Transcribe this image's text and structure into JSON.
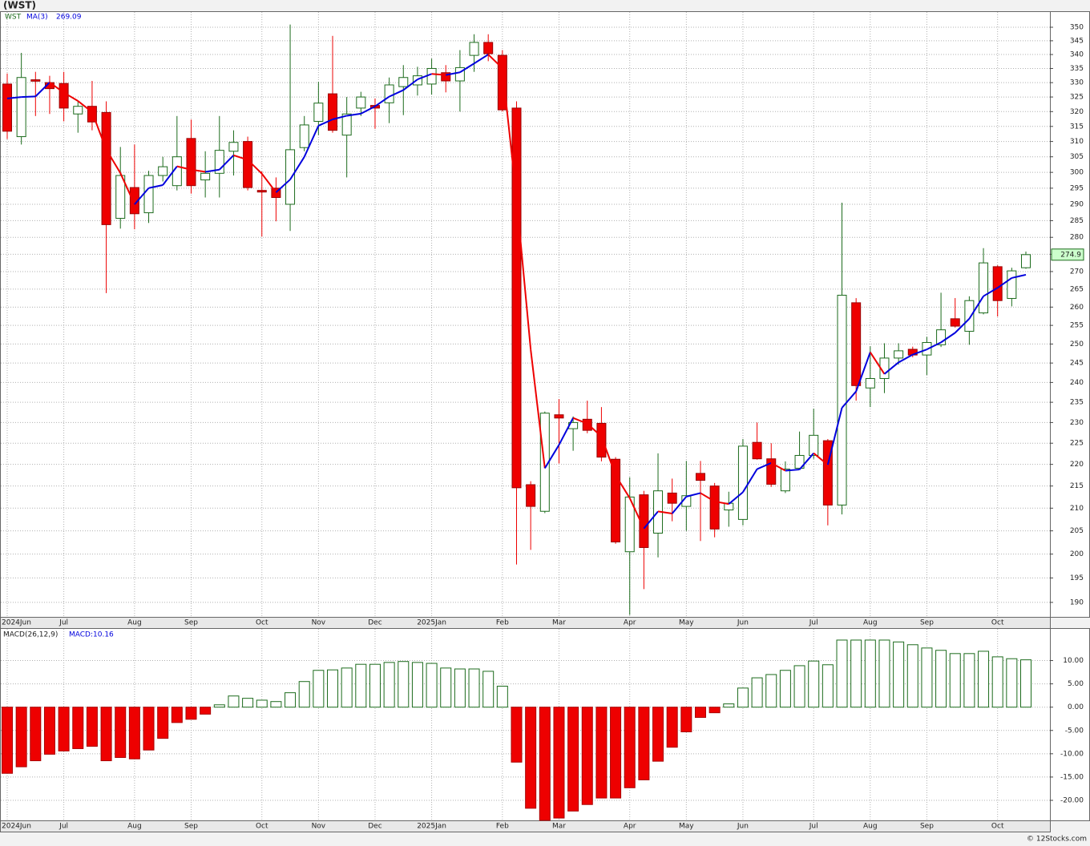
{
  "title": "(WST)",
  "watermark": "© 12Stocks.com",
  "chart_data": [
    {
      "type": "candlestick",
      "categories": [
        "2024Jun",
        null,
        null,
        null,
        "Jul",
        null,
        null,
        null,
        null,
        "Aug",
        null,
        null,
        null,
        "Sep",
        null,
        null,
        null,
        null,
        "Oct",
        null,
        null,
        null,
        "Nov",
        null,
        null,
        null,
        "Dec",
        null,
        null,
        null,
        "2025Jan",
        null,
        null,
        null,
        null,
        "Feb",
        null,
        null,
        null,
        "Mar",
        null,
        null,
        null,
        null,
        "Apr",
        null,
        null,
        null,
        "May",
        null,
        null,
        null,
        "Jun",
        null,
        null,
        null,
        null,
        "Jul",
        null,
        null,
        null,
        "Aug",
        null,
        null,
        null,
        "Sep",
        null,
        null,
        null,
        null,
        "Oct",
        null,
        null
      ],
      "series": [
        {
          "name": "WST",
          "up_color": "#1c6b1c",
          "down_color": "#ee0000",
          "open": [
            329.5,
            311.6,
            331,
            330,
            329.7,
            319.2,
            321.8,
            319.7,
            285.7,
            295.2,
            287.4,
            299,
            295.8,
            311,
            297.6,
            299.7,
            306.8,
            310,
            294.3,
            295,
            290,
            308,
            316.7,
            326.1,
            312.1,
            321.2,
            322.1,
            323,
            328.6,
            329.2,
            329.5,
            333.5,
            330.6,
            339.7,
            344.4,
            339.7,
            321.2,
            215.3,
            209.3,
            231.9,
            228.5,
            230.8,
            229.8,
            221.2,
            200.5,
            213,
            204.5,
            213.4,
            210.4,
            217.9,
            215,
            209.6,
            207.5,
            225.2,
            221.3,
            213.9,
            219.1,
            222.1,
            225.6,
            210.7,
            261.2,
            238.6,
            241,
            246.3,
            248.6,
            247.1,
            249.8,
            256.8,
            253.4,
            258.4,
            271.4,
            262.4,
            271.1
          ],
          "high": [
            333.2,
            340.6,
            333.8,
            332.4,
            333.8,
            323.5,
            330.6,
            323.5,
            308.2,
            309,
            300.5,
            305,
            318.5,
            317.3,
            306.8,
            318.5,
            313.7,
            311.6,
            300.3,
            298.4,
            351,
            318.5,
            330.3,
            346.8,
            325,
            326.8,
            324.5,
            331.8,
            336.2,
            335.6,
            338.5,
            336.2,
            341.6,
            347.4,
            347.4,
            341.6,
            323.5,
            216.1,
            232.7,
            235.8,
            231.5,
            235.4,
            233.8,
            221.7,
            217,
            213.9,
            222.6,
            216.7,
            220.8,
            220.8,
            215.7,
            213.7,
            226,
            230,
            225,
            220.7,
            227.8,
            233.4,
            226,
            290.5,
            262.5,
            249.4,
            250.2,
            250.2,
            249.3,
            251.9,
            264,
            262.5,
            263,
            276.8,
            271.8,
            271.1,
            275.8
          ],
          "low": [
            310.8,
            309,
            318.5,
            319.2,
            316.7,
            312.9,
            313.7,
            263.9,
            282.6,
            282.4,
            284.3,
            297.1,
            294.3,
            293.3,
            292.1,
            292.1,
            299,
            294.3,
            280.2,
            284.8,
            281.9,
            306.8,
            312.1,
            312.9,
            298.4,
            318.5,
            314.2,
            316.1,
            318.8,
            325.5,
            325.8,
            326.6,
            320,
            333.8,
            337.6,
            320,
            197.8,
            200.9,
            208.9,
            220.2,
            223.2,
            227.4,
            220.7,
            202.2,
            187.5,
            192.7,
            199.3,
            207.1,
            205,
            202.8,
            203.6,
            205.9,
            206.2,
            221.1,
            214.8,
            213.4,
            219.1,
            221.3,
            206.2,
            208.6,
            235.4,
            233.8,
            237.3,
            244.6,
            246.5,
            241.9,
            249.2,
            254.4,
            249.8,
            258,
            257.4,
            260.2,
            270.8
          ],
          "close": [
            313.4,
            331.8,
            330.5,
            327.9,
            321.2,
            321.8,
            316.5,
            283.8,
            299,
            287.1,
            299,
            301.8,
            305,
            295.8,
            299.7,
            307.1,
            309.7,
            295.2,
            293.8,
            292.1,
            307.3,
            315.5,
            322.9,
            313.7,
            319.2,
            325,
            321.2,
            329.2,
            331.8,
            332.4,
            335,
            330.6,
            335.3,
            344.4,
            340.3,
            320.6,
            214.6,
            210.4,
            232.3,
            231.1,
            230,
            228.1,
            221.7,
            202.6,
            212.5,
            201.4,
            213.9,
            211.1,
            212.8,
            216.3,
            205.4,
            211.1,
            224.3,
            221.3,
            215.4,
            218.9,
            222.1,
            226.9,
            210.7,
            263.3,
            239.2,
            241,
            246.3,
            248.2,
            247.1,
            250.4,
            253.8,
            254.8,
            261.8,
            272.5,
            261.8,
            270.2,
            274.9
          ]
        },
        {
          "name": "MA(3)",
          "up_color": "#0000dd",
          "down_color": "#ee0000",
          "values": [
            324.5,
            325,
            325.2,
            330.07,
            326.53,
            323.63,
            319.83,
            307.37,
            299.77,
            289.97,
            295.03,
            295.97,
            301.93,
            300.87,
            300.17,
            300.87,
            305.5,
            304,
            299.57,
            293.7,
            297.73,
            304.97,
            315.23,
            317.37,
            318.6,
            319.3,
            321.8,
            325.13,
            327.4,
            331.13,
            333.07,
            332.67,
            333.63,
            336.77,
            340,
            335.1,
            291.83,
            248.53,
            219.1,
            224.6,
            231.13,
            229.73,
            226.6,
            217.47,
            212.27,
            205.5,
            209.27,
            208.8,
            212.6,
            213.4,
            211.5,
            210.93,
            213.6,
            218.9,
            220.33,
            218.53,
            218.8,
            222.63,
            219.9,
            233.63,
            237.73,
            247.83,
            242.17,
            245.17,
            247.2,
            248.57,
            250.43,
            253,
            256.8,
            263.03,
            265.37,
            268.17,
            269.09
          ]
        }
      ],
      "log_scale": true,
      "grid": true,
      "ylim": [
        187.1,
        355.7
      ],
      "yticks": [
        190,
        195,
        200,
        205,
        210,
        215,
        220,
        225,
        230,
        235,
        240,
        245,
        250,
        255,
        260,
        265,
        270,
        275,
        280,
        285,
        290,
        295,
        300,
        305,
        310,
        315,
        320,
        325,
        330,
        335,
        340,
        345,
        350
      ]
    },
    {
      "type": "bar",
      "series": [
        {
          "name": "MACD(26,12,9)",
          "value_label": "MACD:10.16",
          "up_color": "#1c6b1c",
          "down_color": "#ee0000",
          "values": [
            -14.2,
            -12.8,
            -11.5,
            -10.1,
            -9.4,
            -8.9,
            -8.4,
            -11.5,
            -10.8,
            -11.1,
            -9.2,
            -6.7,
            -3.3,
            -2.6,
            -1.5,
            0.5,
            2.4,
            1.9,
            1.5,
            1.2,
            3.1,
            5.5,
            7.9,
            8.0,
            8.4,
            9.2,
            9.2,
            9.6,
            9.8,
            9.6,
            9.4,
            8.4,
            8.2,
            8.2,
            7.7,
            4.5,
            -11.8,
            -21.7,
            -24.3,
            -23.8,
            -22.3,
            -20.9,
            -19.5,
            -19.5,
            -17.3,
            -15.6,
            -11.6,
            -8.6,
            -5.3,
            -2.2,
            -1.2,
            0.7,
            4.1,
            6.3,
            7.0,
            7.9,
            8.9,
            9.9,
            9.1,
            14.4,
            14.4,
            14.4,
            14.4,
            14.0,
            13.4,
            12.7,
            12.2,
            11.5,
            11.5,
            12.0,
            10.8,
            10.4,
            10.16
          ]
        }
      ],
      "grid": true,
      "ylim": [
        -24.3,
        16.8
      ],
      "yticks": [
        {
          "value": -20,
          "label": "-20.00"
        },
        {
          "value": -15,
          "label": "-15.00"
        },
        {
          "value": -10,
          "label": "-10.00"
        },
        {
          "value": -5,
          "label": "-5.00"
        },
        {
          "value": 0,
          "label": "0.00"
        },
        {
          "value": 5,
          "label": "5.00"
        },
        {
          "value": 10,
          "label": "10.00"
        }
      ]
    }
  ]
}
